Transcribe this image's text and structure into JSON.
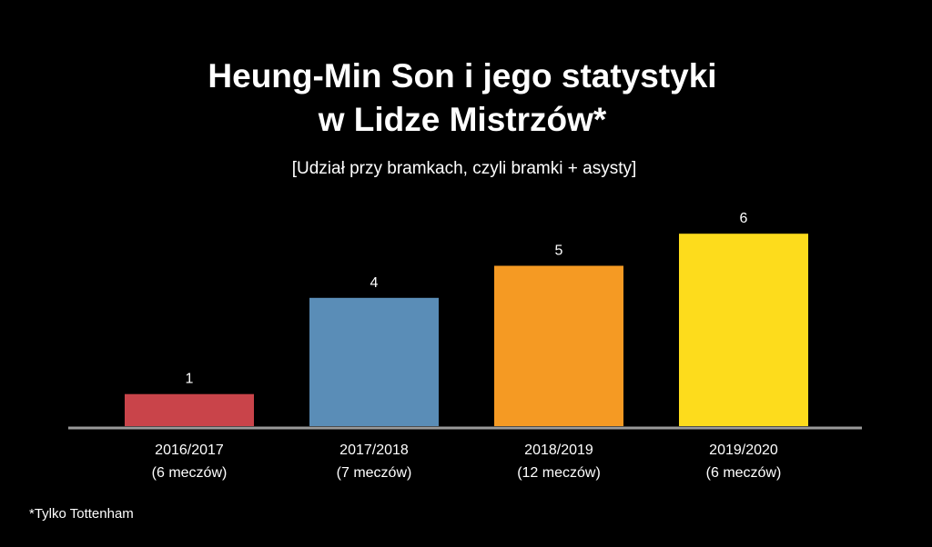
{
  "chart_data": {
    "type": "bar",
    "title_lines": [
      "Heung-Min Son i jego statystyki",
      "w Lidze Mistrzów*"
    ],
    "subtitle": "[Udział przy bramkach, czyli bramki + asysty]",
    "categories": [
      "2016/2017",
      "2017/2018",
      "2018/2019",
      "2019/2020"
    ],
    "category_notes": [
      "(6 meczów)",
      "(7 meczów)",
      "(12 meczów)",
      "(6 meczów)"
    ],
    "values": [
      1,
      4,
      5,
      6
    ],
    "bar_colors": [
      "#c9444a",
      "#5a8db7",
      "#f59a23",
      "#fddc1c"
    ],
    "axis_color": "#9a9a9a",
    "ylim": [
      0,
      6
    ],
    "grid": false,
    "legend": "none",
    "footnote": "*Tylko Tottenham"
  }
}
